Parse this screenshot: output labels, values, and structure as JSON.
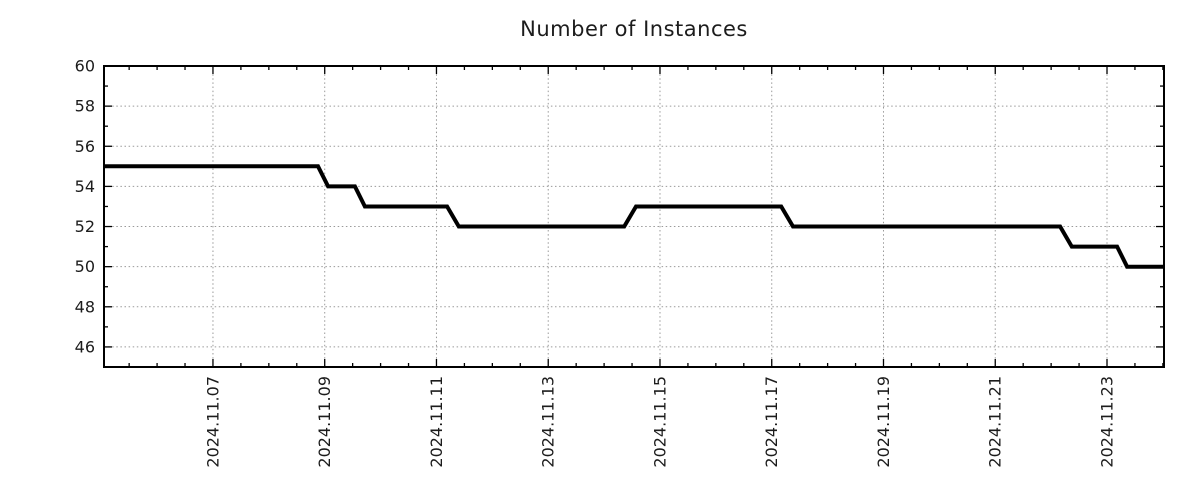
{
  "chart_data": {
    "type": "line",
    "title": "Number of Instances",
    "xlabel": "",
    "ylabel": "",
    "x_unit": "date (November 2024, fractional day of month)",
    "xlim": [
      5.05,
      24.02
    ],
    "ylim": [
      45.0,
      60
    ],
    "y_major_ticks": [
      46,
      48,
      50,
      52,
      54,
      56,
      58,
      60
    ],
    "y_minor_tick_step": 1,
    "x_major_tick_days": [
      7,
      9,
      11,
      13,
      15,
      17,
      19,
      21,
      23
    ],
    "x_major_tick_labels": [
      "2024.11.07",
      "2024.11.09",
      "2024.11.11",
      "2024.11.13",
      "2024.11.15",
      "2024.11.17",
      "2024.11.19",
      "2024.11.21",
      "2024.11.23"
    ],
    "x_minor_tick_step": 0.5,
    "grid": "dotted",
    "legend": "none",
    "colors": {
      "line": "#000000",
      "grid": "#9a9a9a",
      "axis": "#000000",
      "text": "#1c1c1c",
      "background": "#ffffff"
    },
    "series": [
      {
        "name": "Number of Instances",
        "style": "step",
        "line_width": 4,
        "steps": [
          {
            "from_day": 5.05,
            "to_day": 8.88,
            "value": 55
          },
          {
            "from_day": 9.06,
            "to_day": 9.54,
            "value": 54
          },
          {
            "from_day": 9.72,
            "to_day": 11.19,
            "value": 53
          },
          {
            "from_day": 11.4,
            "to_day": 14.36,
            "value": 52
          },
          {
            "from_day": 14.57,
            "to_day": 17.17,
            "value": 53
          },
          {
            "from_day": 17.38,
            "to_day": 22.16,
            "value": 52
          },
          {
            "from_day": 22.37,
            "to_day": 23.18,
            "value": 51
          },
          {
            "from_day": 23.36,
            "to_day": 24.02,
            "value": 50
          }
        ]
      }
    ]
  }
}
